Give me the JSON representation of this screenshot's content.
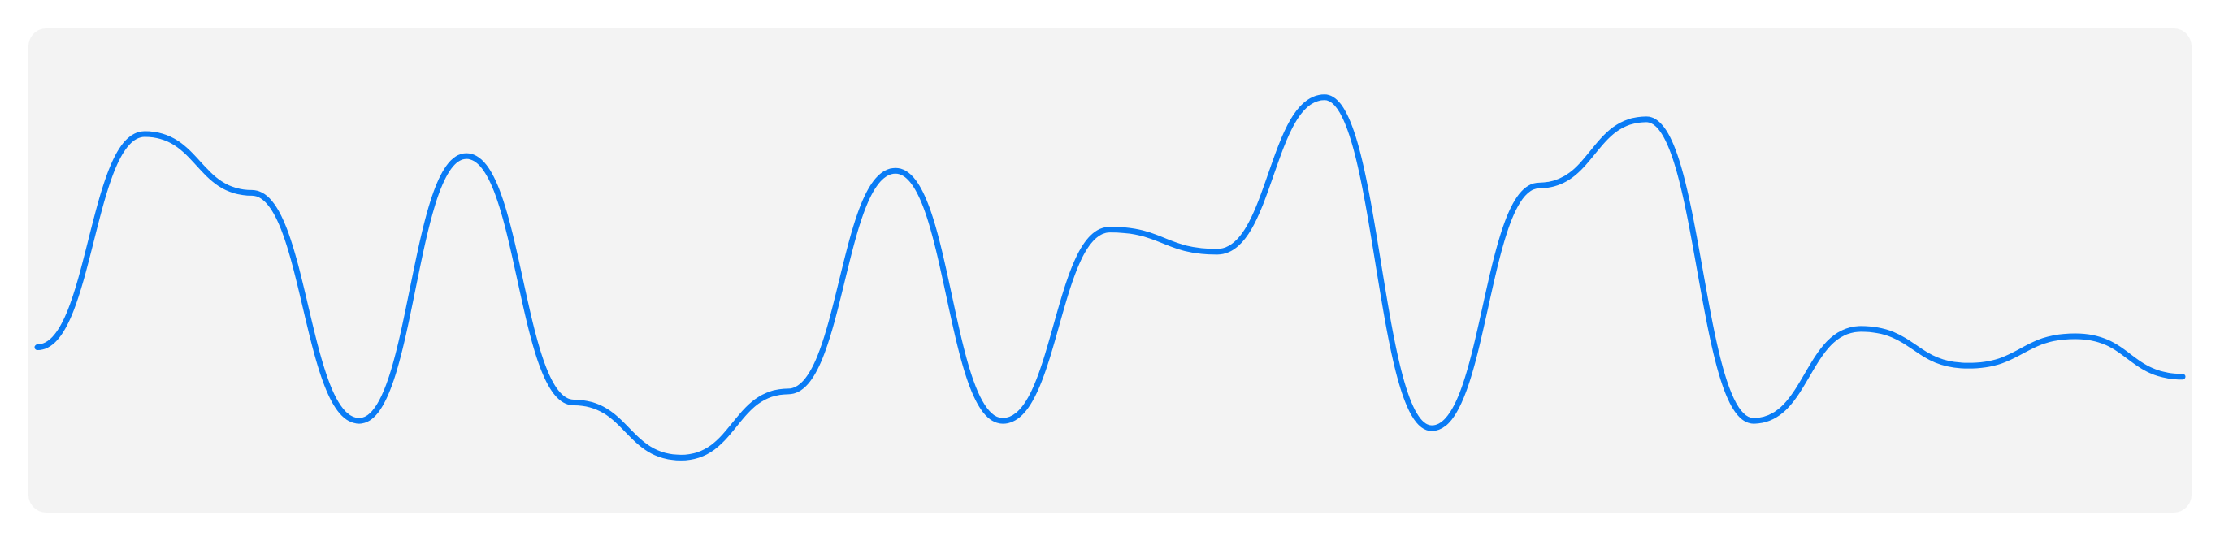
{
  "chart_data": {
    "type": "line",
    "color": "#0a7cf5",
    "values": [
      30,
      88,
      72,
      10,
      82,
      15,
      0,
      18,
      78,
      10,
      62,
      56,
      98,
      8,
      74,
      92,
      10,
      35,
      25,
      33,
      22
    ],
    "ylim": [
      -5,
      105
    ]
  }
}
